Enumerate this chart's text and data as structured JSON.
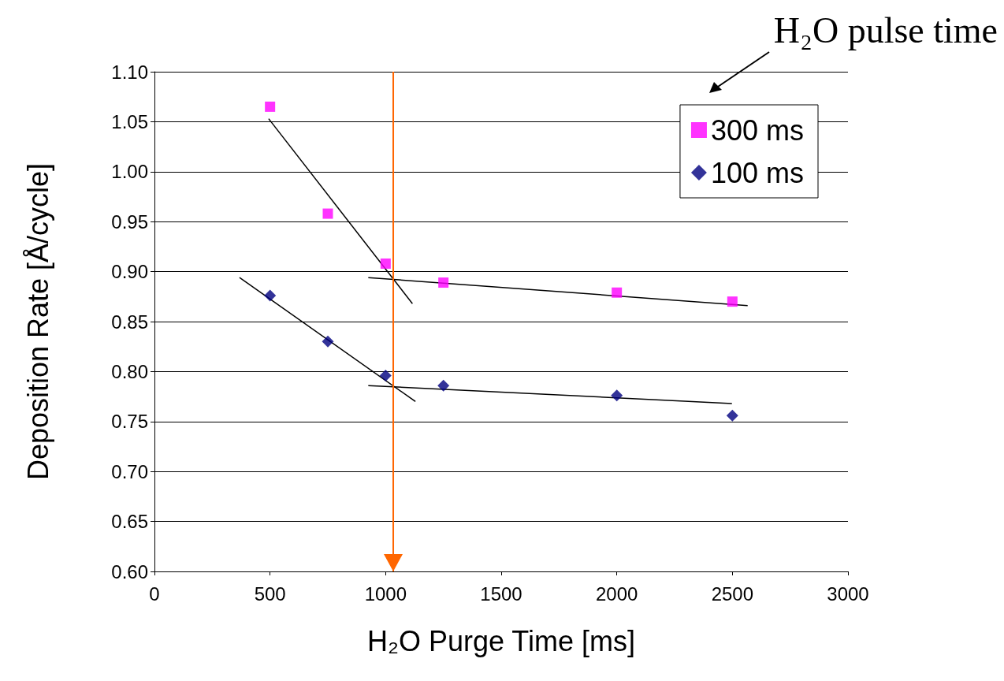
{
  "chart_data": {
    "type": "scatter",
    "xlabel": "H₂O Purge Time [ms]",
    "ylabel": "Deposition Rate [Å/cycle]",
    "annotations": [
      "H₂O pulse time"
    ],
    "xlim": [
      0,
      3000
    ],
    "xticks": [
      0,
      500,
      1000,
      1500,
      2000,
      2500,
      3000
    ],
    "ylim": [
      0.6,
      1.1
    ],
    "yticks": [
      {
        "value": 0.6,
        "label": "0.60"
      },
      {
        "value": 0.65,
        "label": "0.65"
      },
      {
        "value": 0.7,
        "label": "0.70"
      },
      {
        "value": 0.75,
        "label": "0.75"
      },
      {
        "value": 0.8,
        "label": "0.80"
      },
      {
        "value": 0.85,
        "label": "0.85"
      },
      {
        "value": 0.9,
        "label": "0.90"
      },
      {
        "value": 0.95,
        "label": "0.95"
      },
      {
        "value": 1.0,
        "label": "1.00"
      },
      {
        "value": 1.05,
        "label": "1.05"
      },
      {
        "value": 1.1,
        "label": "1.10"
      }
    ],
    "grid": "y",
    "legend": "top right",
    "x": [
      500,
      750,
      1000,
      1250,
      2000,
      2500
    ],
    "series": [
      {
        "name": "300 ms",
        "marker": "square",
        "color": "#ff00ff",
        "values": [
          1.065,
          0.958,
          0.908,
          0.889,
          0.879,
          0.87
        ]
      },
      {
        "name": "100 ms",
        "marker": "diamond",
        "color": "#000080",
        "values": [
          0.876,
          0.83,
          0.796,
          0.786,
          0.776,
          0.756
        ]
      },
      {
        "type": "line",
        "marker": "none",
        "color": "#000000",
        "x": [
          494,
          1116
        ],
        "values": [
          1.053,
          0.868
        ]
      },
      {
        "type": "line",
        "marker": "none",
        "color": "#000000",
        "x": [
          925,
          2566
        ],
        "values": [
          0.894,
          0.866
        ]
      },
      {
        "type": "line",
        "marker": "none",
        "color": "#000000",
        "x": [
          368,
          1129
        ],
        "values": [
          0.894,
          0.77
        ]
      },
      {
        "type": "line",
        "marker": "none",
        "color": "#000000",
        "x": [
          925,
          2498
        ],
        "values": [
          0.786,
          0.768
        ]
      }
    ],
    "ref_lines": [
      {
        "axis": "x",
        "value": 1033,
        "color": "#ff6600"
      }
    ]
  }
}
